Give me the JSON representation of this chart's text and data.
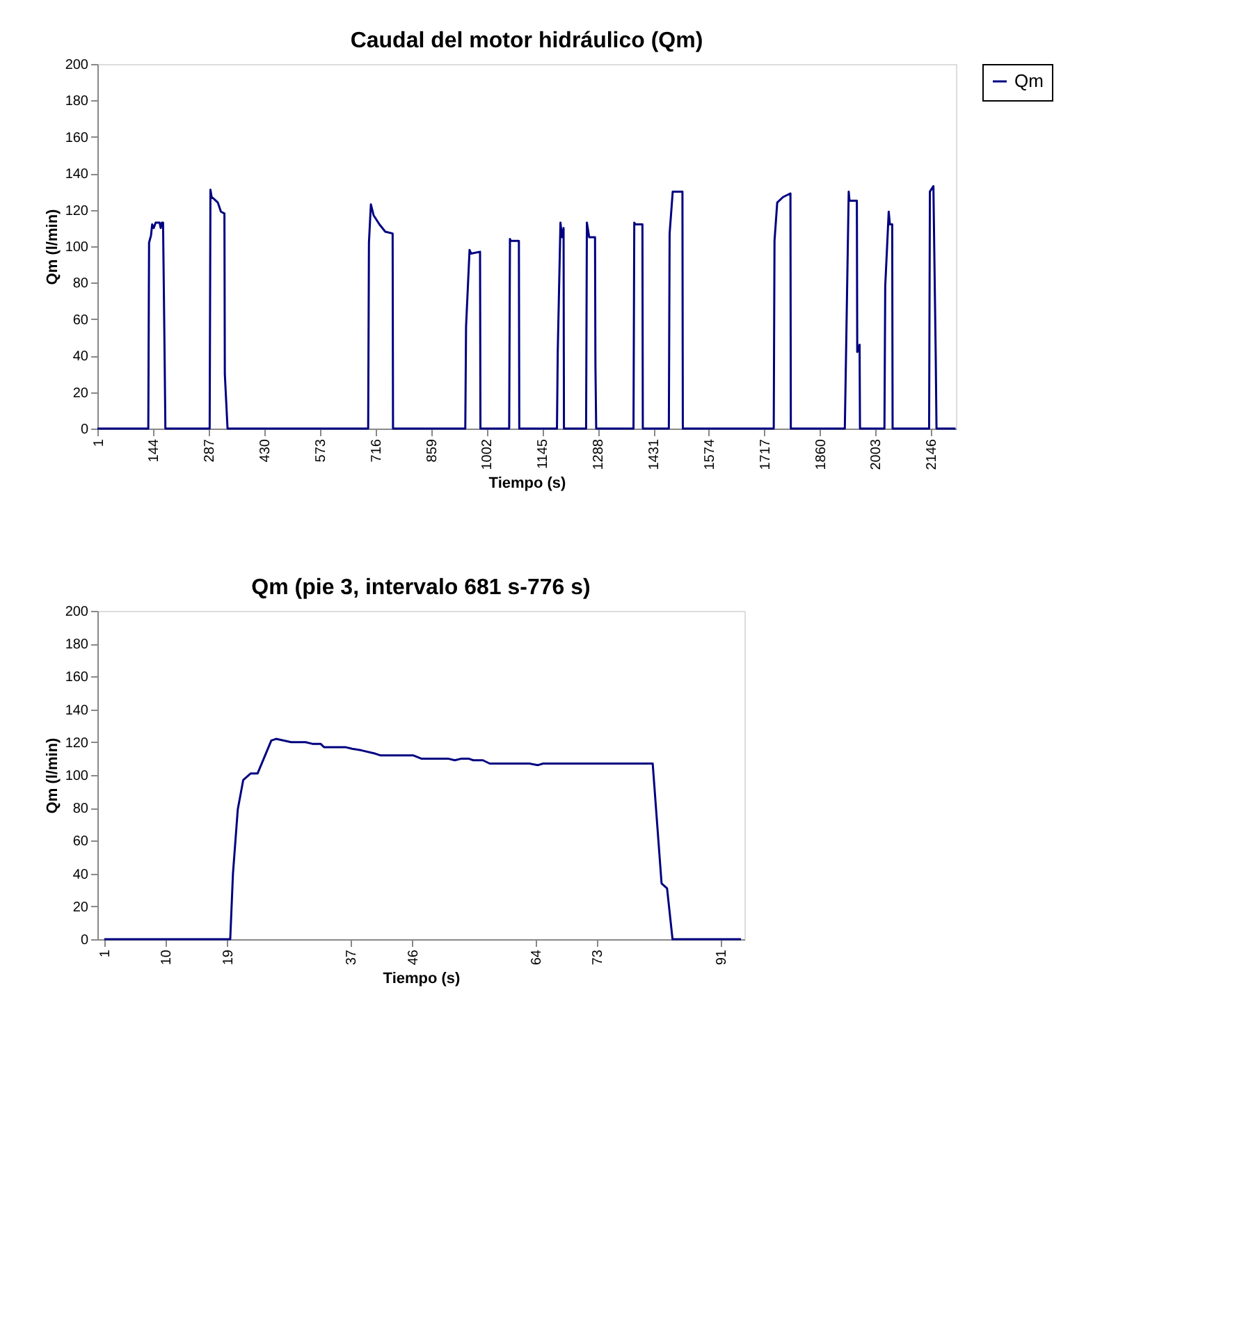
{
  "chart_data": [
    {
      "type": "line",
      "title": "Caudal del motor hidráulico (Qm)",
      "xlabel": "Tiempo (s)",
      "ylabel": "Qm (l/min)",
      "xlim": [
        0,
        2210
      ],
      "ylim": [
        0,
        200
      ],
      "xticks": [
        1,
        144,
        287,
        430,
        573,
        716,
        859,
        1002,
        1145,
        1288,
        1431,
        1574,
        1717,
        1860,
        2003,
        2146
      ],
      "yticks": [
        0,
        20,
        40,
        60,
        80,
        100,
        120,
        140,
        160,
        180,
        200
      ],
      "grid": false,
      "legend": "right",
      "marker": "none",
      "line_style": "solid",
      "series": [
        {
          "name": "Qm",
          "color": "#000080",
          "x": [
            0,
            131,
            133,
            138,
            141,
            145,
            150,
            160,
            163,
            166,
            169,
            173,
            175,
            289,
            291,
            294,
            300,
            310,
            318,
            327,
            328,
            335,
            697,
            699,
            704,
            711,
            726,
            741,
            760,
            761,
            947,
            949,
            958,
            962,
            985,
            986,
            1060,
            1062,
            1064,
            1085,
            1086,
            1183,
            1185,
            1192,
            1196,
            1200,
            1201,
            1258,
            1260,
            1266,
            1281,
            1282,
            1284,
            1380,
            1382,
            1385,
            1403,
            1404,
            1471,
            1473,
            1481,
            1506,
            1507,
            1741,
            1743,
            1750,
            1765,
            1784,
            1785,
            1924,
            1934,
            1936,
            1955,
            1956,
            1962,
            1963,
            2026,
            2028,
            2037,
            2040,
            2046,
            2047,
            2141,
            2143,
            2152,
            2158,
            2160,
            2209
          ],
          "values": [
            0,
            0,
            102,
            106,
            112,
            110,
            113,
            113,
            110,
            113,
            113,
            40,
            0,
            0,
            131,
            127,
            126,
            124,
            119,
            118,
            30,
            0,
            0,
            102,
            123,
            117,
            112,
            108,
            107,
            0,
            0,
            56,
            98,
            96,
            97,
            0,
            0,
            104,
            103,
            103,
            0,
            0,
            42,
            113,
            105,
            110,
            0,
            0,
            113,
            105,
            105,
            35,
            0,
            0,
            113,
            112,
            112,
            0,
            0,
            107,
            130,
            130,
            0,
            0,
            103,
            124,
            127,
            129,
            0,
            0,
            130,
            125,
            125,
            42,
            46,
            0,
            0,
            78,
            119,
            112,
            112,
            0,
            0,
            130,
            133,
            40,
            0,
            0
          ]
        }
      ]
    },
    {
      "type": "line",
      "title": "Qm (pie 3, intervalo 681 s-776 s)",
      "xlabel": "Tiempo (s)",
      "ylabel": "Qm (l/min)",
      "xlim": [
        0,
        94.5
      ],
      "ylim": [
        0,
        200
      ],
      "xticks": [
        1,
        10,
        19,
        37,
        46,
        64,
        73,
        91
      ],
      "yticks": [
        0,
        20,
        40,
        60,
        80,
        100,
        120,
        140,
        160,
        180,
        200
      ],
      "grid": false,
      "marker": "none",
      "line_style": "solid",
      "series": [
        {
          "color": "#000080",
          "x": [
            1,
            19.4,
            19.8,
            20.5,
            21.3,
            22.4,
            23.4,
            25.4,
            26.1,
            28.3,
            30.4,
            31.4,
            32.6,
            33.1,
            36.2,
            37.2,
            38.6,
            40.6,
            41.3,
            46.1,
            47.3,
            51.2,
            52.2,
            53.2,
            54.2,
            54.9,
            56.3,
            57.3,
            63.1,
            64.3,
            65.1,
            81.1,
            82.4,
            83.2,
            84,
            94
          ],
          "values": [
            0,
            0,
            40,
            79,
            97,
            101,
            101,
            121,
            122,
            120,
            120,
            119,
            119,
            117,
            117,
            116,
            115,
            113,
            112,
            112,
            110,
            110,
            109,
            110,
            110,
            109,
            109,
            107,
            107,
            106,
            107,
            107,
            34,
            31,
            0,
            0
          ]
        }
      ]
    }
  ]
}
